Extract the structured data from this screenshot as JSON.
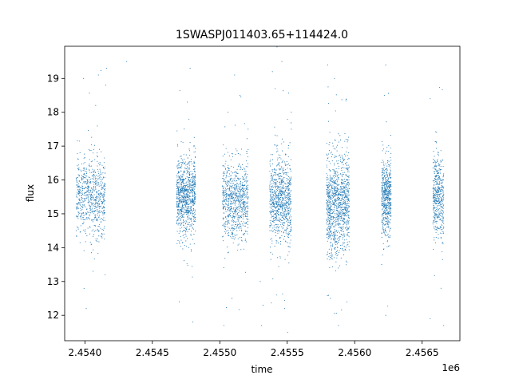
{
  "chart_data": {
    "type": "scatter",
    "title": "1SWASPJ011403.65+114424.0",
    "xlabel": "time",
    "ylabel": "flux",
    "x_offset_label": "1e6",
    "xlim": [
      2453850,
      2456780
    ],
    "ylim": [
      11.25,
      19.95
    ],
    "x_ticks": [
      2454000,
      2454500,
      2455000,
      2455500,
      2456000,
      2456500
    ],
    "x_tick_labels": [
      "2.4540",
      "2.4545",
      "2.4550",
      "2.4555",
      "2.4560",
      "2.4565"
    ],
    "y_ticks": [
      12,
      13,
      14,
      15,
      16,
      17,
      18,
      19
    ],
    "y_tick_labels": [
      "12",
      "13",
      "14",
      "15",
      "16",
      "17",
      "18",
      "19"
    ],
    "grid": false,
    "marker_color": "#1f77b4",
    "series": [
      {
        "clusters": [
          {
            "x_start": 2453935,
            "x_end": 2454150,
            "y_center": 15.5,
            "y_spread": 0.55,
            "n": 700
          },
          {
            "x_start": 2454680,
            "x_end": 2454820,
            "y_center": 15.5,
            "y_spread": 0.6,
            "n": 900
          },
          {
            "x_start": 2455020,
            "x_end": 2455210,
            "y_center": 15.4,
            "y_spread": 0.55,
            "n": 800
          },
          {
            "x_start": 2455370,
            "x_end": 2455530,
            "y_center": 15.4,
            "y_spread": 0.6,
            "n": 850
          },
          {
            "x_start": 2455790,
            "x_end": 2455960,
            "y_center": 15.3,
            "y_spread": 0.75,
            "n": 1100
          },
          {
            "x_start": 2456200,
            "x_end": 2456270,
            "y_center": 15.5,
            "y_spread": 0.55,
            "n": 550
          },
          {
            "x_start": 2456580,
            "x_end": 2456660,
            "y_center": 15.5,
            "y_spread": 0.6,
            "n": 450
          }
        ],
        "outliers": [
          {
            "x": 2454080,
            "y": 18.2
          },
          {
            "x": 2454100,
            "y": 19.1
          },
          {
            "x": 2454060,
            "y": 13.3
          },
          {
            "x": 2454010,
            "y": 12.2
          },
          {
            "x": 2453990,
            "y": 19.0
          },
          {
            "x": 2454150,
            "y": 13.2
          },
          {
            "x": 2454160,
            "y": 19.3
          },
          {
            "x": 2454155,
            "y": 18.8
          },
          {
            "x": 2454780,
            "y": 19.3
          },
          {
            "x": 2454760,
            "y": 18.3
          },
          {
            "x": 2454800,
            "y": 11.8
          },
          {
            "x": 2454700,
            "y": 12.4
          },
          {
            "x": 2454770,
            "y": 14.0
          },
          {
            "x": 2455060,
            "y": 18.0
          },
          {
            "x": 2455110,
            "y": 19.1
          },
          {
            "x": 2455090,
            "y": 12.5
          },
          {
            "x": 2455150,
            "y": 18.5
          },
          {
            "x": 2455210,
            "y": 16.9
          },
          {
            "x": 2455210,
            "y": 17.5
          },
          {
            "x": 2455030,
            "y": 11.7
          },
          {
            "x": 2455390,
            "y": 19.2
          },
          {
            "x": 2455410,
            "y": 18.7
          },
          {
            "x": 2455460,
            "y": 19.5
          },
          {
            "x": 2455530,
            "y": 18.0
          },
          {
            "x": 2455530,
            "y": 17.5
          },
          {
            "x": 2455420,
            "y": 12.6
          },
          {
            "x": 2455480,
            "y": 12.2
          },
          {
            "x": 2455800,
            "y": 19.4
          },
          {
            "x": 2455850,
            "y": 19.0
          },
          {
            "x": 2455880,
            "y": 11.7
          },
          {
            "x": 2455820,
            "y": 12.5
          },
          {
            "x": 2456230,
            "y": 19.4
          },
          {
            "x": 2456220,
            "y": 18.5
          },
          {
            "x": 2456230,
            "y": 12.0
          },
          {
            "x": 2456200,
            "y": 13.5
          },
          {
            "x": 2456560,
            "y": 18.4
          },
          {
            "x": 2456620,
            "y": 16.8
          },
          {
            "x": 2456640,
            "y": 12.8
          },
          {
            "x": 2456560,
            "y": 11.9
          },
          {
            "x": 2456660,
            "y": 11.7
          },
          {
            "x": 2454050,
            "y": 14.1
          },
          {
            "x": 2455320,
            "y": 12.3
          },
          {
            "x": 2455300,
            "y": 13.0
          },
          {
            "x": 2455310,
            "y": 11.7
          },
          {
            "x": 2454310,
            "y": 19.5
          }
        ]
      }
    ]
  }
}
